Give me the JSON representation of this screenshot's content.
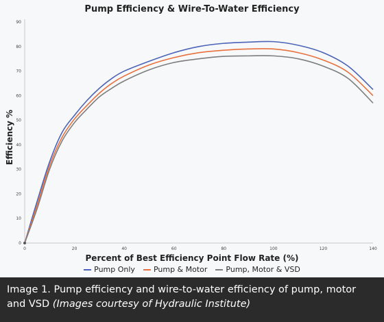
{
  "chart_data": {
    "type": "line",
    "title": "Pump Efficiency & Wire-To-Water Efficiency",
    "xlabel": "Percent of Best Efficiency Point Flow Rate (%)",
    "ylabel": "Efficiency %",
    "xlim": [
      0,
      140
    ],
    "ylim": [
      0,
      90
    ],
    "xticks": [
      0,
      20,
      40,
      60,
      80,
      100,
      120,
      140
    ],
    "yticks": [
      0,
      10,
      20,
      30,
      40,
      50,
      60,
      70,
      80,
      90
    ],
    "grid": false,
    "legend_position": "bottom",
    "x": [
      0,
      5,
      10,
      15,
      20,
      25,
      30,
      35,
      40,
      50,
      60,
      70,
      80,
      90,
      100,
      110,
      120,
      130,
      140
    ],
    "series": [
      {
        "name": "Pump Only",
        "color": "#4a63b8",
        "values": [
          0,
          17,
          33,
          45,
          52,
          58,
          63,
          67,
          70,
          74,
          77.5,
          80,
          81.3,
          81.8,
          82,
          80.5,
          77.5,
          72,
          62.5
        ]
      },
      {
        "name": "Pump & Motor",
        "color": "#e8703d",
        "values": [
          0,
          15.5,
          31.5,
          43,
          50.5,
          56,
          61,
          65,
          68,
          72.5,
          75.5,
          77.5,
          78.5,
          79,
          79,
          77.5,
          74.5,
          69.5,
          60
        ]
      },
      {
        "name": "Pump, Motor & VSD",
        "color": "#7d7d7d",
        "values": [
          0,
          14,
          30,
          41.5,
          49,
          54.5,
          59.5,
          63,
          66,
          70.5,
          73.5,
          75,
          76,
          76.2,
          76.2,
          75,
          72,
          67,
          57
        ]
      }
    ]
  },
  "caption": {
    "main": "Image 1. Pump efficiency and wire-to-water efficiency of pump, motor and VSD ",
    "credit": "(Images courtesy of Hydraulic Institute)"
  }
}
